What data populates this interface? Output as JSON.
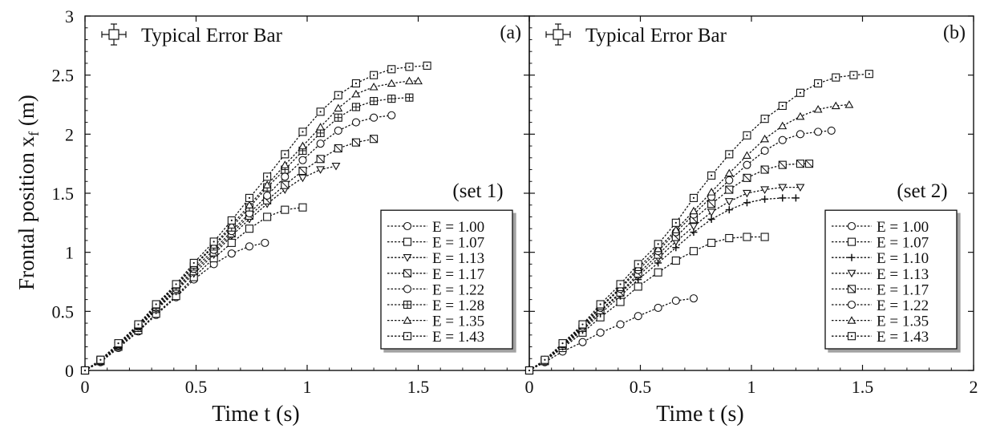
{
  "ylabel": "Frontal position x",
  "ylabel_sub": "f",
  "ylabel_unit": "(m)",
  "error_bar_label": "Typical Error Bar",
  "chart_data": [
    {
      "type": "line",
      "panel_label": "(a)",
      "set_label": "(set 1)",
      "xlabel": "Time t (s)",
      "xlim": [
        0,
        2
      ],
      "ylim": [
        0,
        3
      ],
      "xticks": [
        "0",
        "0.5",
        "1",
        "1.5",
        ""
      ],
      "yticks": [
        "0",
        "0.5",
        "1",
        "1.5",
        "2",
        "2.5",
        "3"
      ],
      "legend_position": "lower-right",
      "series": [
        {
          "name": "E = 1.00",
          "marker": "circle",
          "x": [
            0,
            0.07,
            0.15,
            0.24,
            0.32,
            0.41,
            0.49,
            0.58,
            0.66,
            0.74,
            0.81
          ],
          "y": [
            0,
            0.07,
            0.19,
            0.33,
            0.47,
            0.62,
            0.77,
            0.9,
            0.99,
            1.05,
            1.08
          ]
        },
        {
          "name": "E = 1.07",
          "marker": "square",
          "x": [
            0,
            0.07,
            0.15,
            0.24,
            0.32,
            0.41,
            0.49,
            0.58,
            0.66,
            0.74,
            0.82,
            0.9,
            0.98
          ],
          "y": [
            0,
            0.08,
            0.2,
            0.34,
            0.48,
            0.63,
            0.79,
            0.95,
            1.08,
            1.2,
            1.3,
            1.36,
            1.38
          ]
        },
        {
          "name": "E = 1.13",
          "marker": "triangle-down",
          "x": [
            0,
            0.07,
            0.15,
            0.24,
            0.32,
            0.41,
            0.49,
            0.58,
            0.66,
            0.74,
            0.82,
            0.9,
            0.98,
            1.06,
            1.13
          ],
          "y": [
            0,
            0.08,
            0.21,
            0.36,
            0.51,
            0.67,
            0.82,
            0.98,
            1.14,
            1.28,
            1.41,
            1.53,
            1.63,
            1.7,
            1.73
          ]
        },
        {
          "name": "E = 1.17",
          "marker": "square-x",
          "x": [
            0,
            0.07,
            0.15,
            0.24,
            0.32,
            0.41,
            0.49,
            0.58,
            0.66,
            0.74,
            0.82,
            0.9,
            0.98,
            1.06,
            1.14,
            1.22,
            1.3
          ],
          "y": [
            0,
            0.08,
            0.21,
            0.36,
            0.52,
            0.68,
            0.84,
            1.0,
            1.16,
            1.31,
            1.44,
            1.57,
            1.69,
            1.79,
            1.88,
            1.93,
            1.96
          ]
        },
        {
          "name": "E = 1.22",
          "marker": "circle",
          "x": [
            0,
            0.07,
            0.15,
            0.24,
            0.32,
            0.41,
            0.49,
            0.58,
            0.66,
            0.74,
            0.82,
            0.9,
            0.98,
            1.06,
            1.14,
            1.22,
            1.3,
            1.38
          ],
          "y": [
            0,
            0.08,
            0.21,
            0.37,
            0.53,
            0.69,
            0.86,
            1.02,
            1.18,
            1.33,
            1.48,
            1.64,
            1.78,
            1.92,
            2.03,
            2.1,
            2.14,
            2.16
          ]
        },
        {
          "name": "E = 1.28",
          "marker": "square-plus",
          "x": [
            0,
            0.07,
            0.15,
            0.24,
            0.32,
            0.41,
            0.49,
            0.58,
            0.66,
            0.74,
            0.82,
            0.9,
            0.98,
            1.06,
            1.14,
            1.22,
            1.3,
            1.38,
            1.46
          ],
          "y": [
            0,
            0.09,
            0.22,
            0.38,
            0.54,
            0.71,
            0.88,
            1.05,
            1.21,
            1.38,
            1.55,
            1.7,
            1.86,
            2.01,
            2.14,
            2.23,
            2.28,
            2.3,
            2.31
          ]
        },
        {
          "name": "E = 1.35",
          "marker": "triangle-up",
          "x": [
            0,
            0.07,
            0.15,
            0.24,
            0.32,
            0.41,
            0.49,
            0.58,
            0.66,
            0.74,
            0.82,
            0.9,
            0.98,
            1.06,
            1.14,
            1.22,
            1.3,
            1.38,
            1.46,
            1.5
          ],
          "y": [
            0,
            0.09,
            0.22,
            0.38,
            0.55,
            0.72,
            0.89,
            1.06,
            1.23,
            1.4,
            1.57,
            1.74,
            1.9,
            2.06,
            2.22,
            2.34,
            2.4,
            2.43,
            2.45,
            2.45
          ]
        },
        {
          "name": "E = 1.43",
          "marker": "square-dot",
          "x": [
            0,
            0.07,
            0.15,
            0.24,
            0.32,
            0.41,
            0.49,
            0.58,
            0.66,
            0.74,
            0.82,
            0.9,
            0.98,
            1.06,
            1.14,
            1.22,
            1.3,
            1.38,
            1.46,
            1.54
          ],
          "y": [
            0,
            0.09,
            0.23,
            0.39,
            0.56,
            0.73,
            0.91,
            1.09,
            1.27,
            1.46,
            1.64,
            1.83,
            2.02,
            2.19,
            2.33,
            2.43,
            2.5,
            2.55,
            2.57,
            2.58
          ]
        }
      ]
    },
    {
      "type": "line",
      "panel_label": "(b)",
      "set_label": "(set 2)",
      "xlabel": "Time t (s)",
      "xlim": [
        0,
        2
      ],
      "ylim": [
        0,
        3
      ],
      "xticks": [
        "0",
        "0.5",
        "1",
        "1.5",
        "2"
      ],
      "yticks": [],
      "legend_position": "lower-right",
      "series": [
        {
          "name": "E = 1.00",
          "marker": "circle",
          "x": [
            0,
            0.07,
            0.15,
            0.24,
            0.32,
            0.41,
            0.49,
            0.58,
            0.66,
            0.74
          ],
          "y": [
            0,
            0.07,
            0.16,
            0.24,
            0.32,
            0.39,
            0.46,
            0.53,
            0.59,
            0.61
          ]
        },
        {
          "name": "E = 1.07",
          "marker": "square",
          "x": [
            0,
            0.07,
            0.15,
            0.24,
            0.32,
            0.41,
            0.49,
            0.58,
            0.66,
            0.74,
            0.82,
            0.9,
            0.98,
            1.06
          ],
          "y": [
            0,
            0.08,
            0.19,
            0.32,
            0.45,
            0.58,
            0.71,
            0.83,
            0.93,
            1.01,
            1.08,
            1.12,
            1.13,
            1.13
          ]
        },
        {
          "name": "E = 1.10",
          "marker": "plus",
          "x": [
            0,
            0.07,
            0.15,
            0.24,
            0.32,
            0.41,
            0.49,
            0.58,
            0.66,
            0.74,
            0.82,
            0.9,
            0.98,
            1.06,
            1.14,
            1.2
          ],
          "y": [
            0,
            0.08,
            0.2,
            0.34,
            0.48,
            0.63,
            0.77,
            0.91,
            1.04,
            1.17,
            1.28,
            1.36,
            1.42,
            1.45,
            1.46,
            1.46
          ]
        },
        {
          "name": "E = 1.13",
          "marker": "triangle-down",
          "x": [
            0,
            0.07,
            0.15,
            0.24,
            0.32,
            0.41,
            0.49,
            0.58,
            0.66,
            0.74,
            0.82,
            0.9,
            0.98,
            1.06,
            1.14,
            1.22
          ],
          "y": [
            0,
            0.08,
            0.21,
            0.35,
            0.5,
            0.65,
            0.8,
            0.95,
            1.09,
            1.22,
            1.34,
            1.43,
            1.5,
            1.53,
            1.55,
            1.55
          ]
        },
        {
          "name": "E = 1.17",
          "marker": "square-x",
          "x": [
            0,
            0.07,
            0.15,
            0.24,
            0.32,
            0.41,
            0.49,
            0.58,
            0.66,
            0.74,
            0.82,
            0.9,
            0.98,
            1.06,
            1.14,
            1.22,
            1.26
          ],
          "y": [
            0,
            0.08,
            0.21,
            0.36,
            0.51,
            0.66,
            0.82,
            0.98,
            1.13,
            1.28,
            1.41,
            1.53,
            1.63,
            1.7,
            1.74,
            1.75,
            1.75
          ]
        },
        {
          "name": "E = 1.22",
          "marker": "circle",
          "x": [
            0,
            0.07,
            0.15,
            0.24,
            0.32,
            0.41,
            0.49,
            0.58,
            0.66,
            0.74,
            0.82,
            0.9,
            0.98,
            1.06,
            1.14,
            1.22,
            1.3,
            1.36
          ],
          "y": [
            0,
            0.09,
            0.22,
            0.37,
            0.53,
            0.69,
            0.85,
            1.01,
            1.17,
            1.32,
            1.47,
            1.61,
            1.74,
            1.86,
            1.95,
            2.0,
            2.02,
            2.03
          ]
        },
        {
          "name": "E = 1.35",
          "marker": "triangle-up",
          "x": [
            0,
            0.07,
            0.15,
            0.24,
            0.32,
            0.41,
            0.49,
            0.58,
            0.66,
            0.74,
            0.82,
            0.9,
            0.98,
            1.06,
            1.14,
            1.22,
            1.3,
            1.38,
            1.44
          ],
          "y": [
            0,
            0.09,
            0.22,
            0.38,
            0.54,
            0.7,
            0.87,
            1.03,
            1.19,
            1.35,
            1.51,
            1.67,
            1.82,
            1.96,
            2.07,
            2.15,
            2.21,
            2.24,
            2.25
          ]
        },
        {
          "name": "E = 1.43",
          "marker": "square-dot",
          "x": [
            0,
            0.07,
            0.15,
            0.24,
            0.32,
            0.41,
            0.49,
            0.58,
            0.66,
            0.74,
            0.82,
            0.9,
            0.98,
            1.06,
            1.14,
            1.22,
            1.3,
            1.38,
            1.46,
            1.53
          ],
          "y": [
            0,
            0.09,
            0.23,
            0.39,
            0.56,
            0.73,
            0.9,
            1.07,
            1.25,
            1.46,
            1.65,
            1.83,
            1.99,
            2.13,
            2.24,
            2.35,
            2.43,
            2.48,
            2.5,
            2.51
          ]
        }
      ]
    }
  ]
}
